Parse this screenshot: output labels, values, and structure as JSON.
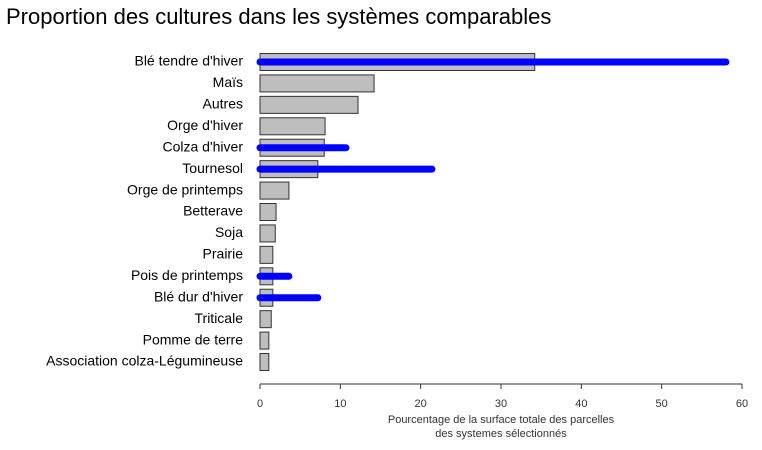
{
  "chart_data": {
    "type": "bar",
    "title": "Proportion des cultures dans les systèmes comparables",
    "xlabel": [
      "Pourcentage de la surface totale des parcelles",
      "des systemes sélectionnés"
    ],
    "categories": [
      "Blé tendre d'hiver",
      "Maïs",
      "Autres",
      "Orge d'hiver",
      "Colza d'hiver",
      "Tournesol",
      "Orge de printemps",
      "Betterave",
      "Soja",
      "Prairie",
      "Pois de printemps",
      "Blé dur d'hiver",
      "Triticale",
      "Pomme de terre",
      "Association colza-Légumineuse"
    ],
    "series": [
      {
        "color": "#bebebe",
        "values": [
          34.2,
          14.2,
          12.2,
          8.1,
          8.0,
          7.2,
          3.6,
          2.0,
          1.9,
          1.6,
          1.6,
          1.6,
          1.4,
          1.1,
          1.1
        ]
      },
      {
        "color": "#0000ff",
        "values": [
          58,
          null,
          null,
          null,
          10.7,
          21.4,
          null,
          null,
          null,
          null,
          3.6,
          7.2,
          null,
          null,
          null
        ]
      }
    ],
    "xlim": [
      0,
      60
    ],
    "xticks": [
      0,
      10,
      20,
      30,
      40,
      50,
      60
    ]
  }
}
